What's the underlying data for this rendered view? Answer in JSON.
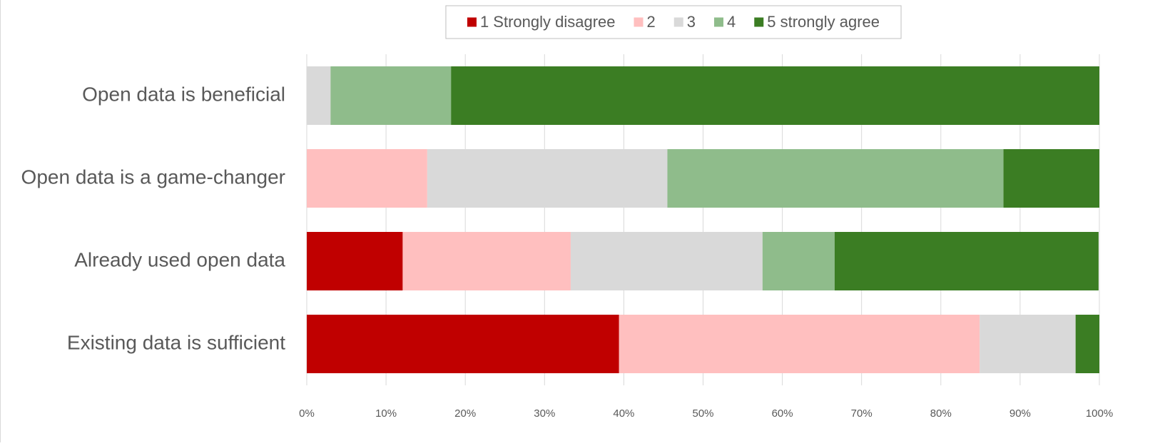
{
  "chart_data": {
    "type": "stacked_bar_horizontal",
    "categories": [
      "Open data is beneficial",
      "Open data is a game-changer",
      "Already used open data",
      "Existing data is sufficient"
    ],
    "series": [
      {
        "name": "1 Strongly disagree",
        "color": "#c00000",
        "values": [
          0,
          0,
          12.1,
          39.4
        ]
      },
      {
        "name": "2",
        "color": "#ffbfbf",
        "values": [
          0,
          15.2,
          21.2,
          45.5
        ]
      },
      {
        "name": "3",
        "color": "#d9d9d9",
        "values": [
          3.0,
          30.3,
          24.2,
          12.1
        ]
      },
      {
        "name": "4",
        "color": "#8fbc8b",
        "values": [
          15.2,
          42.4,
          9.1,
          0
        ]
      },
      {
        "name": "5 strongly agree",
        "color": "#3b7d23",
        "values": [
          81.8,
          12.1,
          33.3,
          3.0
        ]
      }
    ],
    "xlim": [
      0,
      100
    ],
    "xticks": [
      {
        "value": 0,
        "label": "0%"
      },
      {
        "value": 10,
        "label": "10%"
      },
      {
        "value": 20,
        "label": "20%"
      },
      {
        "value": 30,
        "label": "30%"
      },
      {
        "value": 40,
        "label": "40%"
      },
      {
        "value": 50,
        "label": "50%"
      },
      {
        "value": 60,
        "label": "60%"
      },
      {
        "value": 70,
        "label": "70%"
      },
      {
        "value": 80,
        "label": "80%"
      },
      {
        "value": 90,
        "label": "90%"
      },
      {
        "value": 100,
        "label": "100%"
      }
    ],
    "grid": true,
    "legend": "top"
  }
}
